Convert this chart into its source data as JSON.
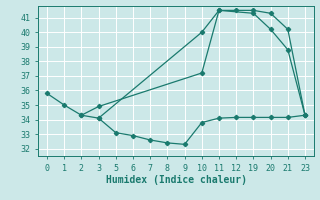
{
  "xlabel": "Humidex (Indice chaleur)",
  "xlim": [
    -0.5,
    15.5
  ],
  "ylim": [
    31.5,
    41.8
  ],
  "yticks": [
    32,
    33,
    34,
    35,
    36,
    37,
    38,
    39,
    40,
    41
  ],
  "xtick_positions": [
    0,
    1,
    2,
    3,
    4,
    5,
    6,
    7,
    8,
    9,
    10,
    11,
    12,
    13,
    14,
    15
  ],
  "xtick_labels": [
    "0",
    "1",
    "2",
    "3",
    "5",
    "6",
    "7",
    "8",
    "9",
    "10",
    "11",
    "12",
    "19",
    "20",
    "21",
    "23"
  ],
  "bg_color": "#cce8e8",
  "grid_color": "#ffffff",
  "line_color": "#1a7a6e",
  "series": [
    {
      "x": [
        0,
        1,
        2,
        3,
        9,
        10,
        12,
        13,
        14,
        15
      ],
      "y": [
        35.8,
        35.0,
        34.3,
        34.1,
        40.0,
        41.5,
        41.3,
        40.2,
        38.8,
        34.3
      ]
    },
    {
      "x": [
        2,
        3,
        9,
        10,
        11,
        12,
        13,
        14,
        15
      ],
      "y": [
        34.3,
        34.9,
        37.2,
        41.5,
        41.5,
        41.5,
        41.3,
        40.2,
        34.3
      ]
    },
    {
      "x": [
        3,
        4,
        5,
        6,
        7,
        8,
        9,
        10,
        11,
        12,
        13,
        14,
        15
      ],
      "y": [
        34.1,
        33.1,
        32.9,
        32.6,
        32.4,
        32.3,
        33.8,
        34.1,
        34.15,
        34.15,
        34.15,
        34.15,
        34.3
      ]
    }
  ]
}
